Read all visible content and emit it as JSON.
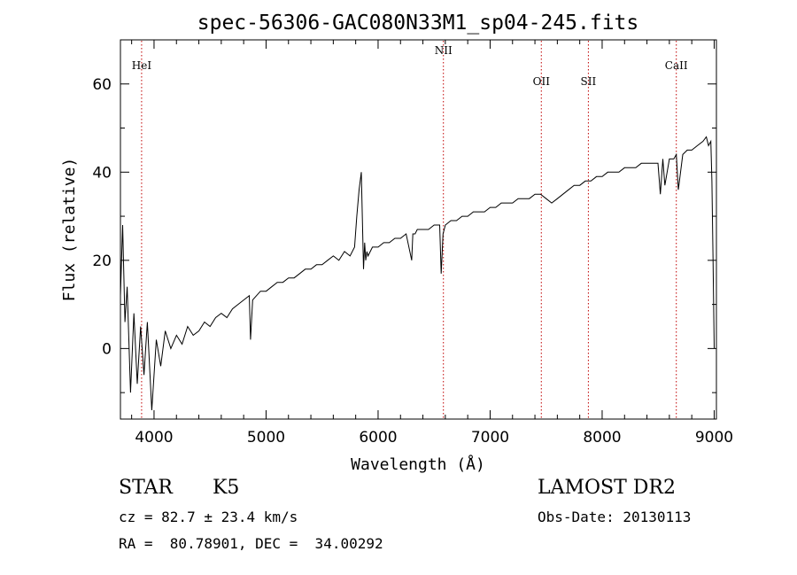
{
  "chart_data": {
    "type": "line",
    "title": "spec-56306-GAC080N33M1_sp04-245.fits",
    "xlabel": "Wavelength (Å)",
    "ylabel": "Flux (relative)",
    "xlim": [
      3700,
      9020
    ],
    "ylim": [
      -16,
      70
    ],
    "xticks": [
      4000,
      5000,
      6000,
      7000,
      8000,
      9000
    ],
    "yticks": [
      0,
      20,
      40,
      60
    ],
    "grid": false,
    "series": [
      {
        "x": [
          3700,
          3720,
          3740,
          3760,
          3790,
          3820,
          3850,
          3880,
          3910,
          3940,
          3980,
          4020,
          4060,
          4100,
          4150,
          4200,
          4250,
          4300,
          4350,
          4400,
          4450,
          4500,
          4550,
          4600,
          4650,
          4700,
          4750,
          4800,
          4850,
          4861,
          4880,
          4950,
          5000,
          5050,
          5100,
          5150,
          5200,
          5250,
          5300,
          5350,
          5400,
          5450,
          5500,
          5550,
          5600,
          5650,
          5700,
          5750,
          5790,
          5810,
          5830,
          5850,
          5870,
          5880,
          5890,
          5900,
          5910,
          5930,
          5950,
          6000,
          6050,
          6100,
          6150,
          6200,
          6250,
          6300,
          6310,
          6330,
          6350,
          6400,
          6450,
          6500,
          6550,
          6563,
          6580,
          6600,
          6650,
          6700,
          6750,
          6800,
          6850,
          6900,
          6950,
          7000,
          7050,
          7100,
          7150,
          7200,
          7250,
          7300,
          7350,
          7400,
          7450,
          7500,
          7550,
          7600,
          7650,
          7700,
          7750,
          7800,
          7850,
          7900,
          7950,
          8000,
          8050,
          8100,
          8150,
          8200,
          8250,
          8300,
          8350,
          8400,
          8450,
          8498,
          8520,
          8542,
          8560,
          8600,
          8640,
          8662,
          8680,
          8720,
          8760,
          8800,
          8850,
          8900,
          8930,
          8950,
          8970,
          8980,
          8990,
          9000
        ],
        "y": [
          12,
          28,
          6,
          14,
          -10,
          8,
          -8,
          5,
          -6,
          6,
          -14,
          2,
          -4,
          4,
          0,
          3,
          1,
          5,
          3,
          4,
          6,
          5,
          7,
          8,
          7,
          9,
          10,
          11,
          12,
          2,
          11,
          13,
          13,
          14,
          15,
          15,
          16,
          16,
          17,
          18,
          18,
          19,
          19,
          20,
          21,
          20,
          22,
          21,
          23,
          30,
          36,
          40,
          18,
          24,
          20,
          22,
          21,
          22,
          23,
          23,
          24,
          24,
          25,
          25,
          26,
          20,
          26,
          26,
          27,
          27,
          27,
          28,
          28,
          17,
          26,
          28,
          29,
          29,
          30,
          30,
          31,
          31,
          31,
          32,
          32,
          33,
          33,
          33,
          34,
          34,
          34,
          35,
          35,
          34,
          33,
          34,
          35,
          36,
          37,
          37,
          38,
          38,
          39,
          39,
          40,
          40,
          40,
          41,
          41,
          41,
          42,
          42,
          42,
          42,
          35,
          43,
          37,
          43,
          43,
          44,
          36,
          44,
          45,
          45,
          46,
          47,
          48,
          46,
          47,
          38,
          20,
          0
        ]
      }
    ],
    "lines": [
      {
        "label": "HeI",
        "x": 3889
      },
      {
        "label": "NII",
        "x": 6583
      },
      {
        "label": "OII",
        "x": 7457
      },
      {
        "label": "SII",
        "x": 7877
      },
      {
        "label": "CaII",
        "x": 8662
      }
    ]
  },
  "info": {
    "class": "STAR",
    "subclass": "K5",
    "survey": "LAMOST DR2",
    "cz": "cz = 82.7 ± 23.4 km/s",
    "obs_date": "Obs-Date: 20130113",
    "coords": "RA =  80.78901, DEC =  34.00292"
  }
}
